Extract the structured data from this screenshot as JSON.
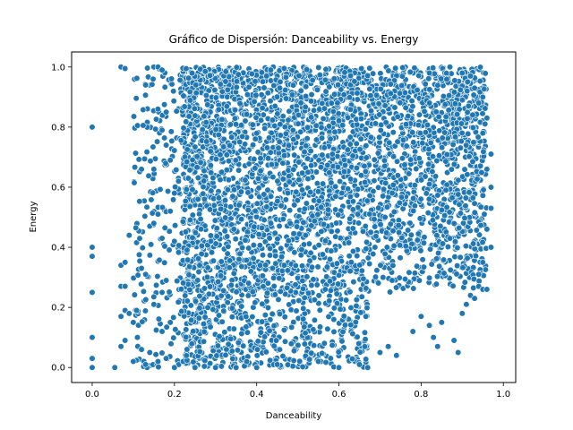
{
  "chart_data": {
    "type": "scatter",
    "title": "Gráfico de Dispersión: Danceability vs. Energy",
    "xlabel": "Danceability",
    "ylabel": "Energy",
    "xlim": [
      -0.05,
      1.03
    ],
    "ylim": [
      -0.05,
      1.05
    ],
    "xticks": [
      0.0,
      0.2,
      0.4,
      0.6,
      0.8,
      1.0
    ],
    "xtick_labels": [
      "0.0",
      "0.2",
      "0.4",
      "0.6",
      "0.8",
      "1.0"
    ],
    "yticks": [
      0.0,
      0.2,
      0.4,
      0.6,
      0.8,
      1.0
    ],
    "ytick_labels": [
      "0.0",
      "0.2",
      "0.4",
      "0.6",
      "0.8",
      "1.0"
    ],
    "grid": false,
    "legend": false,
    "marker_color": "#1f77b4",
    "marker_edge_color": "#ffffff",
    "points": [
      [
        0.0,
        0.8
      ],
      [
        0.0,
        0.4
      ],
      [
        0.0,
        0.37
      ],
      [
        0.0,
        0.25
      ],
      [
        0.0,
        0.1
      ],
      [
        0.0,
        0.03
      ],
      [
        0.0,
        0.0
      ],
      [
        0.055,
        0.0
      ],
      [
        0.07,
        1.0
      ],
      [
        0.08,
        0.995
      ],
      [
        0.07,
        0.34
      ],
      [
        0.08,
        0.35
      ],
      [
        0.07,
        0.27
      ],
      [
        0.08,
        0.27
      ],
      [
        0.09,
        0.44
      ],
      [
        0.07,
        0.17
      ],
      [
        0.08,
        0.19
      ],
      [
        0.09,
        0.18
      ],
      [
        0.07,
        0.07
      ],
      [
        0.08,
        0.09
      ],
      [
        0.12,
        0.66
      ],
      [
        0.13,
        0.94
      ],
      [
        0.15,
        0.66
      ],
      [
        0.14,
        0.47
      ],
      [
        0.15,
        0.48
      ],
      [
        0.13,
        0.31
      ],
      [
        0.12,
        0.33
      ],
      [
        0.15,
        1.0
      ],
      [
        0.16,
        1.0
      ],
      [
        0.17,
        0.99
      ],
      [
        0.18,
        0.85
      ],
      [
        0.16,
        0.86
      ],
      [
        0.17,
        0.79
      ],
      [
        0.18,
        0.74
      ],
      [
        0.19,
        0.69
      ],
      [
        0.2,
        0.58
      ],
      [
        0.21,
        0.62
      ],
      [
        0.19,
        0.52
      ],
      [
        0.16,
        0.51
      ],
      [
        0.17,
        0.43
      ],
      [
        0.2,
        0.42
      ],
      [
        0.18,
        0.29
      ],
      [
        0.17,
        0.25
      ],
      [
        0.15,
        0.21
      ],
      [
        0.19,
        0.15
      ],
      [
        0.17,
        0.12
      ],
      [
        0.14,
        0.05
      ],
      [
        0.16,
        0.02
      ],
      [
        0.1,
        0.15
      ],
      [
        0.11,
        0.1
      ],
      [
        0.12,
        0.06
      ],
      [
        0.1,
        0.02
      ],
      [
        0.13,
        0.01
      ],
      [
        0.18,
        0.03
      ],
      [
        0.2,
        0.0
      ],
      [
        0.25,
        0.0
      ],
      [
        0.3,
        0.0
      ],
      [
        0.35,
        0.0
      ],
      [
        0.4,
        0.0
      ],
      [
        0.45,
        0.01
      ],
      [
        0.55,
        0.02
      ],
      [
        0.6,
        0.0
      ],
      [
        0.65,
        0.01
      ],
      [
        0.67,
        0.0
      ],
      [
        0.7,
        0.05
      ],
      [
        0.72,
        0.07
      ],
      [
        0.74,
        0.04
      ],
      [
        0.78,
        0.12
      ],
      [
        0.8,
        0.17
      ],
      [
        0.82,
        0.14
      ],
      [
        0.83,
        0.1
      ],
      [
        0.84,
        0.07
      ],
      [
        0.85,
        0.15
      ],
      [
        0.88,
        0.09
      ],
      [
        0.89,
        0.05
      ],
      [
        0.9,
        0.18
      ],
      [
        0.91,
        0.21
      ],
      [
        0.92,
        0.24
      ],
      [
        0.93,
        0.23
      ],
      [
        0.94,
        0.27
      ],
      [
        0.95,
        0.26
      ],
      [
        0.96,
        0.26
      ],
      [
        0.94,
        0.31
      ],
      [
        0.95,
        0.35
      ],
      [
        0.97,
        0.4
      ],
      [
        0.96,
        0.46
      ],
      [
        0.97,
        0.53
      ],
      [
        0.97,
        0.6
      ],
      [
        0.96,
        0.66
      ],
      [
        0.97,
        0.71
      ],
      [
        0.95,
        0.78
      ],
      [
        0.96,
        0.83
      ],
      [
        0.94,
        0.88
      ],
      [
        0.95,
        0.9
      ],
      [
        0.93,
        0.93
      ],
      [
        0.92,
        0.97
      ],
      [
        0.9,
        0.98
      ],
      [
        0.87,
        1.0
      ],
      [
        0.82,
        0.98
      ]
    ]
  }
}
